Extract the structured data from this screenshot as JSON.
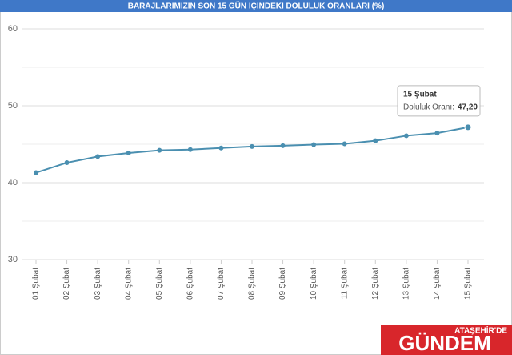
{
  "chart_data": {
    "type": "line",
    "title": "BARAJLARIMIZIN SON 15 GÜN İÇİNDEKİ DOLULUK ORANLARI (%)",
    "categories": [
      "01 Şubat",
      "02 Şubat",
      "03 Şubat",
      "04 Şubat",
      "05 Şubat",
      "06 Şubat",
      "07 Şubat",
      "08 Şubat",
      "09 Şubat",
      "10 Şubat",
      "11 Şubat",
      "12 Şubat",
      "13 Şubat",
      "14 Şubat",
      "15 Şubat"
    ],
    "series": [
      {
        "name": "Doluluk Oranı",
        "color": "#4a8fb0",
        "values": [
          41.3,
          42.6,
          43.4,
          43.85,
          44.2,
          44.3,
          44.5,
          44.7,
          44.8,
          44.95,
          45.05,
          45.45,
          46.1,
          46.45,
          47.2
        ]
      }
    ],
    "ylim": [
      30,
      60
    ],
    "yticks": [
      30,
      40,
      50,
      60
    ],
    "minor_yticks": [
      35,
      45,
      55
    ],
    "grid": true,
    "tooltip": {
      "category": "15 Şubat",
      "label": "Doluluk Oranı:",
      "value": "47,20"
    },
    "logo": {
      "top": "ATAŞEHİR'DE",
      "main": "GÜNDEM"
    }
  }
}
